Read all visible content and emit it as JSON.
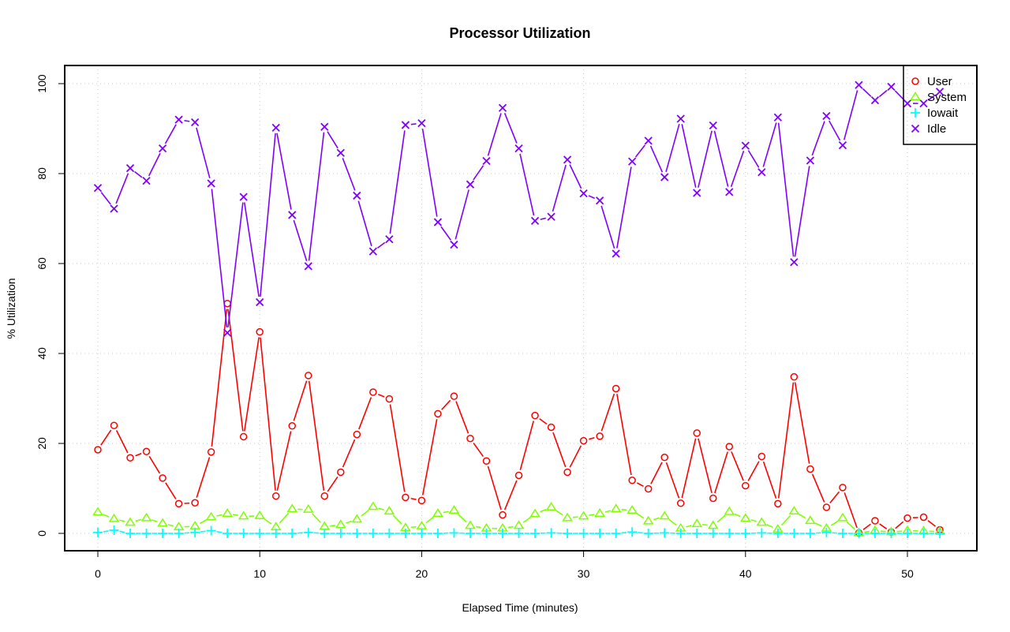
{
  "chart_data": {
    "type": "line",
    "title": "Processor Utilization",
    "xlabel": "Elapsed Time (minutes)",
    "ylabel": "% Utilization",
    "xlim": [
      -2,
      54.5
    ],
    "ylim": [
      -4,
      104
    ],
    "x_ticks": [
      0,
      10,
      20,
      30,
      40,
      50
    ],
    "y_ticks": [
      0,
      20,
      40,
      60,
      80,
      100
    ],
    "x_tick_labels": [
      "0",
      "10",
      "20",
      "30",
      "40",
      "50"
    ],
    "y_tick_labels": [
      "0",
      "20",
      "40",
      "60",
      "80",
      "100"
    ],
    "grid": true,
    "legend_position": "top-right",
    "x": [
      0,
      1,
      2,
      3,
      4,
      5,
      6,
      7,
      8,
      9,
      10,
      11,
      12,
      13,
      14,
      15,
      16,
      17,
      18,
      19,
      20,
      21,
      22,
      23,
      24,
      25,
      26,
      27,
      28,
      29,
      30,
      31,
      32,
      33,
      34,
      35,
      36,
      37,
      38,
      39,
      40,
      41,
      42,
      43,
      44,
      45,
      46,
      47,
      48,
      49,
      50,
      51,
      52
    ],
    "series": [
      {
        "name": "User",
        "color": "#ff0000",
        "marker": "circle",
        "values": [
          18.6,
          24.0,
          16.8,
          18.2,
          12.3,
          6.6,
          6.8,
          18.1,
          51.1,
          21.5,
          44.8,
          8.3,
          23.9,
          35.1,
          8.3,
          13.6,
          22.0,
          31.4,
          29.9,
          8.0,
          7.3,
          26.6,
          30.5,
          21.1,
          16.1,
          4.1,
          12.9,
          26.2,
          23.6,
          13.6,
          20.6,
          21.6,
          32.2,
          11.8,
          9.9,
          16.9,
          6.7,
          22.3,
          7.8,
          19.3,
          10.6,
          17.1,
          6.6,
          34.8,
          14.3,
          5.8,
          10.2,
          0.1,
          2.8,
          0.3,
          3.4,
          3.6,
          0.8
        ]
      },
      {
        "name": "System",
        "color": "#80ff00",
        "marker": "triangle",
        "values": [
          4.7,
          3.2,
          2.4,
          3.4,
          2.2,
          1.4,
          1.6,
          3.6,
          4.4,
          3.8,
          3.9,
          1.4,
          5.4,
          5.3,
          1.5,
          1.9,
          3.1,
          5.9,
          4.9,
          1.2,
          1.6,
          4.4,
          5.1,
          1.7,
          1.1,
          1.1,
          1.7,
          4.3,
          5.8,
          3.4,
          3.8,
          4.4,
          5.4,
          5.1,
          2.7,
          3.8,
          1.1,
          2.1,
          1.7,
          4.8,
          3.3,
          2.4,
          0.9,
          4.9,
          2.8,
          1.1,
          3.4,
          0.1,
          0.6,
          0.3,
          0.6,
          0.5,
          0.4
        ]
      },
      {
        "name": "Iowait",
        "color": "#00ffff",
        "marker": "plus",
        "values": [
          0.2,
          0.7,
          0.0,
          0.0,
          0.0,
          0.0,
          0.2,
          0.6,
          0.0,
          0.0,
          0.0,
          0.0,
          0.0,
          0.2,
          0.0,
          0.0,
          0.0,
          0.0,
          0.0,
          0.0,
          0.0,
          0.0,
          0.1,
          0.0,
          0.0,
          0.0,
          0.0,
          0.0,
          0.1,
          0.0,
          0.0,
          0.0,
          0.0,
          0.3,
          0.0,
          0.1,
          0.0,
          0.0,
          0.0,
          0.0,
          0.0,
          0.1,
          0.0,
          0.0,
          0.0,
          0.2,
          0.0,
          0.0,
          0.0,
          0.0,
          0.0,
          0.0,
          0.0
        ]
      },
      {
        "name": "Idle",
        "color": "#8000ff",
        "marker": "x",
        "values": [
          76.8,
          72.2,
          81.2,
          78.4,
          85.6,
          92.0,
          91.4,
          77.8,
          44.6,
          74.8,
          51.4,
          90.2,
          70.8,
          59.4,
          90.4,
          84.6,
          75.1,
          62.7,
          65.4,
          90.8,
          91.2,
          69.2,
          64.2,
          77.6,
          82.8,
          94.6,
          85.6,
          69.5,
          70.4,
          83.1,
          75.6,
          74.0,
          62.2,
          82.7,
          87.3,
          79.2,
          92.2,
          75.7,
          90.7,
          75.9,
          86.2,
          80.3,
          92.5,
          60.3,
          82.9,
          92.8,
          86.3,
          99.7,
          96.3,
          99.3,
          95.6,
          95.6,
          98.2
        ]
      }
    ]
  }
}
